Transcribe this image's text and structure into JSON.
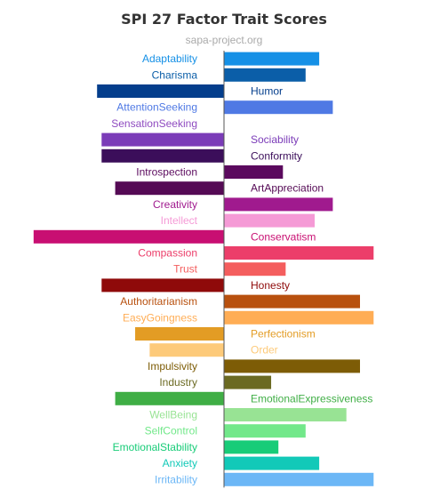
{
  "chart_data": {
    "type": "bar",
    "orientation": "horizontal",
    "title": "SPI 27 Factor Trait Scores",
    "subtitle": "sapa-project.org",
    "categories": [
      {
        "label": "Adaptability",
        "value": 1.05,
        "color": "#1590e6"
      },
      {
        "label": "Charisma",
        "value": 0.9,
        "color": "#0b5ea8"
      },
      {
        "label": "Humor",
        "value": -1.4,
        "color": "#043e8c"
      },
      {
        "label": "AttentionSeeking",
        "value": 1.2,
        "color": "#4f79e4"
      },
      {
        "label": "SensationSeeking",
        "value": 0.0,
        "color": "#8f4bc0"
      },
      {
        "label": "Sociability",
        "value": -1.35,
        "color": "#7b3cb8"
      },
      {
        "label": "Conformity",
        "value": -1.35,
        "color": "#3b0e5a"
      },
      {
        "label": "Introspection",
        "value": 0.65,
        "color": "#5b0a5e"
      },
      {
        "label": "ArtAppreciation",
        "value": -1.2,
        "color": "#550a55"
      },
      {
        "label": "Creativity",
        "value": 1.2,
        "color": "#a01a8e"
      },
      {
        "label": "Intellect",
        "value": 1.0,
        "color": "#f59ad6"
      },
      {
        "label": "Conservatism",
        "value": -2.1,
        "color": "#c80f72"
      },
      {
        "label": "Compassion",
        "value": 1.65,
        "color": "#ec3e6a"
      },
      {
        "label": "Trust",
        "value": 0.68,
        "color": "#f45e5e"
      },
      {
        "label": "Honesty",
        "value": -1.35,
        "color": "#8f0a0a"
      },
      {
        "label": "Authoritarianism",
        "value": 1.5,
        "color": "#b8500e"
      },
      {
        "label": "EasyGoingness",
        "value": 1.65,
        "color": "#ffad55"
      },
      {
        "label": "Perfectionism",
        "value": -0.98,
        "color": "#e39c24"
      },
      {
        "label": "Order",
        "value": -0.82,
        "color": "#fdca7a"
      },
      {
        "label": "Impulsivity",
        "value": 1.5,
        "color": "#7d5c06"
      },
      {
        "label": "Industry",
        "value": 0.52,
        "color": "#6b6a22"
      },
      {
        "label": "EmotionalExpressiveness",
        "value": -1.2,
        "color": "#3fae45"
      },
      {
        "label": "WellBeing",
        "value": 1.35,
        "color": "#98e394"
      },
      {
        "label": "SelfControl",
        "value": 0.9,
        "color": "#72e88a"
      },
      {
        "label": "EmotionalStability",
        "value": 0.6,
        "color": "#18cc78"
      },
      {
        "label": "Anxiety",
        "value": 1.05,
        "color": "#12c9b8"
      },
      {
        "label": "Irritability",
        "value": 1.65,
        "color": "#6cb7f6"
      }
    ],
    "xlim": [
      -2.1,
      1.7
    ],
    "axis_color": "#555555"
  }
}
